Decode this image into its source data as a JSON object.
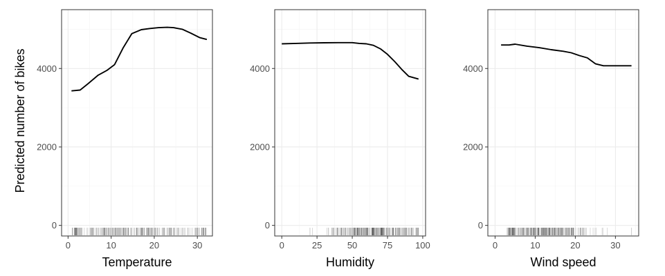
{
  "colors": {
    "line": "#000000",
    "panel_border": "#333333",
    "grid_major": "#ebebeb",
    "grid_minor": "#f4f4f4",
    "tick_text": "#4d4d4d",
    "rug": "#000000"
  },
  "chart_data": [
    {
      "type": "line",
      "xlabel": "Temperature",
      "ylabel": "Predicted number of bikes",
      "xlim": [
        -1.5,
        33.5
      ],
      "ylim": [
        -270,
        5500
      ],
      "xticks": [
        0,
        10,
        20,
        30
      ],
      "yticks": [
        0,
        2000,
        4000
      ],
      "grid": true,
      "x": [
        0.8,
        2.8,
        4.5,
        7.0,
        9.0,
        10.8,
        12.8,
        14.8,
        17.0,
        19.0,
        21.0,
        23.0,
        24.5,
        26.5,
        28.5,
        30.5,
        32.2
      ],
      "y": [
        3430,
        3450,
        3600,
        3830,
        3950,
        4100,
        4530,
        4890,
        4990,
        5020,
        5040,
        5050,
        5040,
        5000,
        4900,
        4790,
        4740
      ],
      "rug": {
        "range": [
          1,
          32
        ],
        "center": 15,
        "spread": 10,
        "count": 260
      }
    },
    {
      "type": "line",
      "xlabel": "Humidity",
      "ylabel": "",
      "xlim": [
        -5,
        102
      ],
      "ylim": [
        -270,
        5500
      ],
      "xticks": [
        0,
        25,
        50,
        75,
        100
      ],
      "yticks": [
        0,
        2000,
        4000
      ],
      "grid": true,
      "x": [
        0,
        10,
        20,
        30,
        40,
        50,
        55,
        60,
        65,
        70,
        75,
        80,
        85,
        90,
        97
      ],
      "y": [
        4630,
        4640,
        4650,
        4655,
        4660,
        4660,
        4640,
        4630,
        4590,
        4500,
        4360,
        4180,
        3980,
        3800,
        3730
      ],
      "rug": {
        "range": [
          20,
          97
        ],
        "center": 65,
        "spread": 16,
        "count": 260
      }
    },
    {
      "type": "line",
      "xlabel": "Wind speed",
      "ylabel": "",
      "xlim": [
        -1.8,
        35.8
      ],
      "ylim": [
        -270,
        5500
      ],
      "xticks": [
        0,
        10,
        20,
        30
      ],
      "yticks": [
        0,
        2000,
        4000
      ],
      "grid": true,
      "x": [
        1.5,
        3.5,
        5.0,
        8.0,
        11.0,
        14.0,
        17.0,
        19.0,
        21.0,
        23.0,
        25.0,
        27.0,
        30.0,
        34.0
      ],
      "y": [
        4600,
        4600,
        4620,
        4570,
        4530,
        4480,
        4440,
        4400,
        4330,
        4270,
        4120,
        4070,
        4070,
        4070
      ],
      "rug": {
        "range": [
          3,
          34
        ],
        "center": 12,
        "spread": 6,
        "count": 260
      }
    }
  ]
}
